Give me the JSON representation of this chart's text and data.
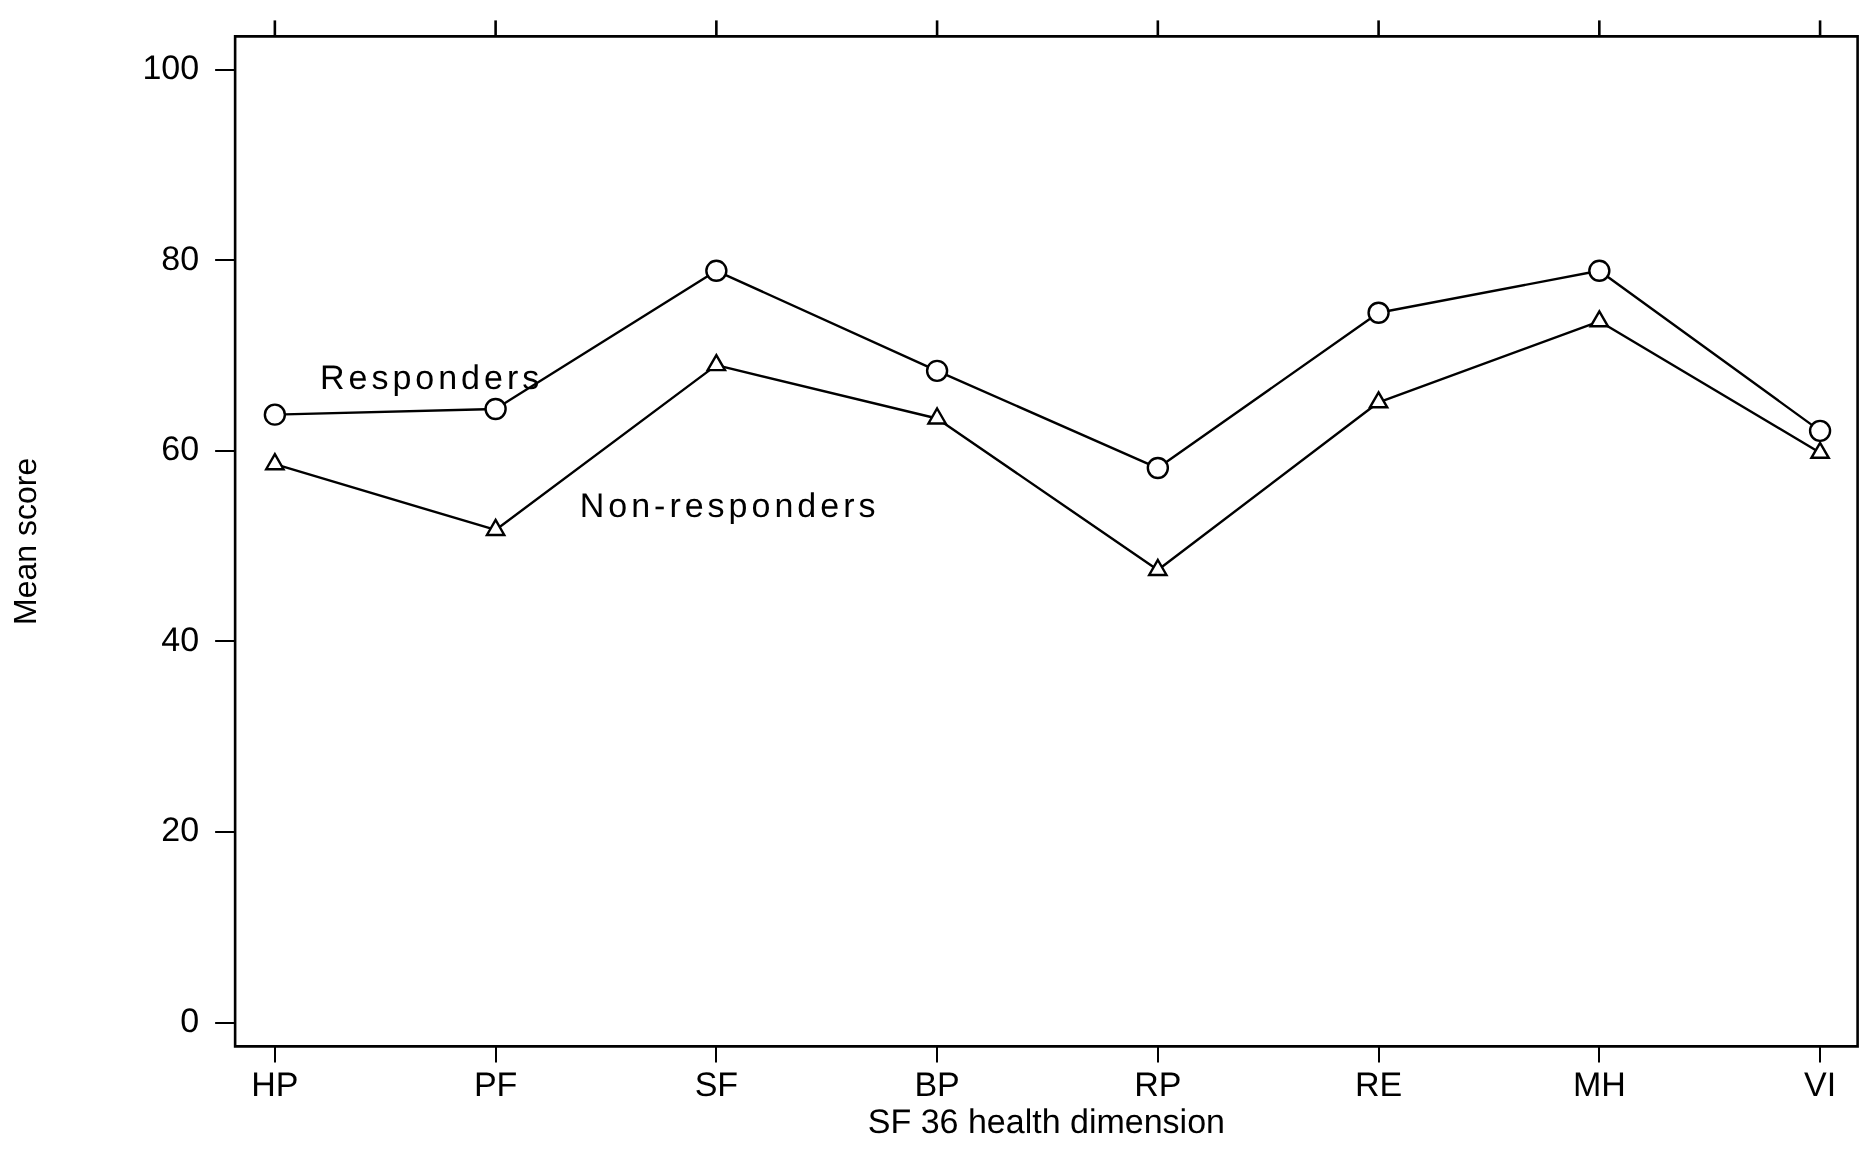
{
  "chart_data": {
    "type": "line",
    "xlabel": "SF 36 health dimension",
    "ylabel": "Mean score",
    "categories": [
      "HP",
      "PF",
      "SF",
      "BP",
      "RP",
      "RE",
      "MH",
      "VI"
    ],
    "series": [
      {
        "name": "Responders",
        "color": "#000000",
        "marker": "circle",
        "values": [
          63.8,
          64.4,
          78.9,
          68.4,
          58.2,
          74.5,
          78.9,
          62.1
        ]
      },
      {
        "name": "Non-responders",
        "color": "#000000",
        "marker": "triangle",
        "values": [
          58.6,
          51.7,
          69.0,
          63.4,
          47.5,
          65.1,
          73.6,
          59.8
        ]
      }
    ],
    "ylim": [
      -2.5,
      103.5
    ],
    "yticks": [
      0,
      20,
      40,
      60,
      80,
      100
    ],
    "grid": false,
    "legend": false,
    "line_style": "solid"
  }
}
